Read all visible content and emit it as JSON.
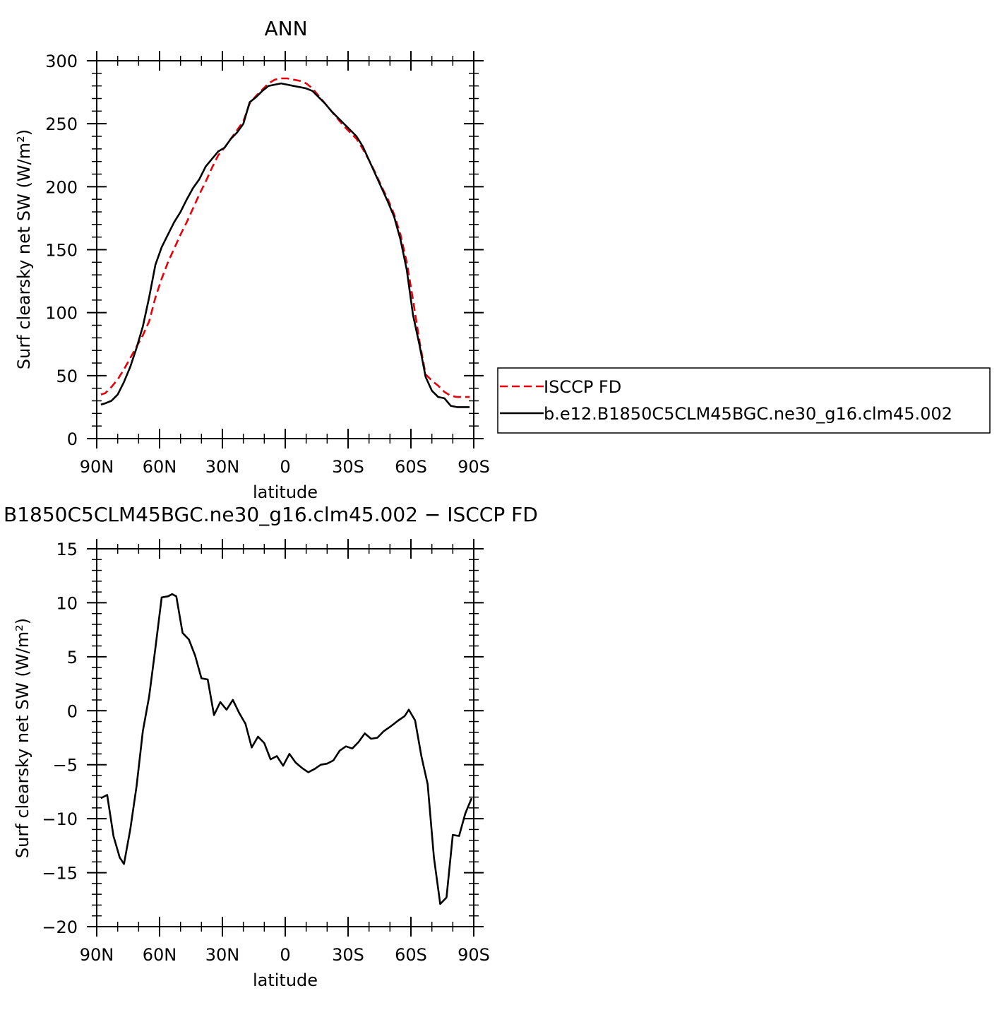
{
  "colors": {
    "series_obs": "#e8000b",
    "series_model": "#000000",
    "axis": "#000000"
  },
  "chart_data": [
    {
      "type": "line",
      "title": "ANN",
      "xlabel": "latitude",
      "ylabel": "Surf clearsky net SW (W/m²)",
      "xlim": [
        -90,
        90
      ],
      "ylim": [
        0,
        300
      ],
      "x_ticks": [
        -90,
        -60,
        -30,
        0,
        30,
        60,
        90
      ],
      "x_tick_labels": [
        "90N",
        "60N",
        "30N",
        "0",
        "30S",
        "60S",
        "90S"
      ],
      "y_ticks": [
        0,
        50,
        100,
        150,
        200,
        250,
        300
      ],
      "y_tick_labels": [
        "0",
        "50",
        "100",
        "150",
        "200",
        "250",
        "300"
      ],
      "legend_position": "right",
      "series": [
        {
          "name": "ISCCP FD",
          "style": "dashed",
          "color": "#e8000b",
          "x": [
            -88,
            -86,
            -83,
            -80,
            -77,
            -74,
            -71,
            -68,
            -65,
            -62,
            -59,
            -56,
            -53,
            -50,
            -47,
            -44,
            -41,
            -38,
            -35,
            -32,
            -29,
            -26,
            -23,
            -20,
            -17,
            -14,
            -11,
            -8,
            -5,
            -2,
            1,
            4,
            7,
            10,
            13,
            16,
            19,
            22,
            25,
            28,
            31,
            34,
            37,
            40,
            43,
            46,
            49,
            52,
            55,
            58,
            61,
            64,
            67,
            70,
            73,
            76,
            79,
            82,
            85,
            88
          ],
          "y": [
            35,
            36,
            41,
            47,
            55,
            64,
            73,
            82,
            93,
            112,
            127,
            140,
            151,
            162,
            172,
            183,
            194,
            204,
            215,
            225,
            231,
            238,
            245,
            252,
            266,
            272,
            277,
            282,
            285,
            286,
            286,
            285,
            284,
            282,
            278,
            272,
            266,
            260,
            254,
            248,
            243,
            238,
            230,
            221,
            211,
            200,
            190,
            178,
            162,
            140,
            110,
            78,
            51,
            46,
            42,
            37,
            34,
            33,
            33,
            33
          ]
        },
        {
          "name": "b.e12.B1850C5CLM45BGC.ne30_g16.clm45.002",
          "style": "solid",
          "color": "#000000",
          "x": [
            -88,
            -86,
            -83,
            -80,
            -77,
            -74,
            -71,
            -68,
            -65,
            -62,
            -59,
            -56,
            -53,
            -50,
            -47,
            -44,
            -41,
            -38,
            -35,
            -32,
            -29,
            -26,
            -23,
            -20,
            -17,
            -14,
            -11,
            -8,
            -5,
            -2,
            1,
            4,
            7,
            10,
            13,
            16,
            19,
            22,
            25,
            28,
            31,
            34,
            37,
            40,
            43,
            46,
            49,
            52,
            55,
            58,
            61,
            64,
            67,
            70,
            73,
            76,
            79,
            82,
            85,
            88
          ],
          "y": [
            27,
            28,
            30,
            35,
            45,
            57,
            72,
            89,
            112,
            138,
            152,
            162,
            172,
            180,
            190,
            199,
            206,
            216,
            222,
            228,
            231,
            238,
            243,
            250,
            267,
            271,
            276,
            280,
            281,
            282,
            281,
            280,
            279,
            278,
            276,
            271,
            266,
            260,
            255,
            250,
            245,
            240,
            232,
            221,
            210,
            199,
            188,
            176,
            158,
            134,
            98,
            75,
            49,
            38,
            33,
            32,
            26,
            25,
            25,
            25
          ]
        }
      ]
    },
    {
      "type": "line",
      "title": "B1850C5CLM45BGC.ne30_g16.clm45.002 − ISCCP FD",
      "xlabel": "latitude",
      "ylabel": "Surf clearsky net SW (W/m²)",
      "xlim": [
        -90,
        90
      ],
      "ylim": [
        -20,
        15
      ],
      "x_ticks": [
        -90,
        -60,
        -30,
        0,
        30,
        60,
        90
      ],
      "x_tick_labels": [
        "90N",
        "60N",
        "30N",
        "0",
        "30S",
        "60S",
        "90S"
      ],
      "y_ticks": [
        -20,
        -15,
        -10,
        -5,
        0,
        5,
        10,
        15
      ],
      "y_tick_labels": [
        "−20",
        "−15",
        "−10",
        "−5",
        "0",
        "5",
        "10",
        "15"
      ],
      "series": [
        {
          "style": "solid",
          "color": "#000000",
          "x": [
            -88,
            -85,
            -82,
            -79,
            -77,
            -74,
            -71,
            -68,
            -65,
            -62,
            -59,
            -56,
            -54,
            -52,
            -49,
            -46,
            -43,
            -40,
            -37,
            -34,
            -31,
            -28,
            -25,
            -22,
            -19,
            -16,
            -13,
            -10,
            -7,
            -4,
            -1,
            2,
            5,
            8,
            11,
            14,
            17,
            20,
            23,
            26,
            29,
            32,
            35,
            38,
            41,
            44,
            47,
            50,
            52,
            54,
            57,
            59,
            62,
            65,
            68,
            71,
            74,
            77,
            80,
            83,
            86,
            89
          ],
          "y": [
            -8.1,
            -7.8,
            -11.6,
            -13.6,
            -14.2,
            -11.0,
            -7.0,
            -1.9,
            1.3,
            5.8,
            10.5,
            10.6,
            10.8,
            10.6,
            7.2,
            6.6,
            5.1,
            3.0,
            2.9,
            -0.4,
            0.8,
            0.1,
            1.0,
            -0.2,
            -1.2,
            -3.4,
            -2.4,
            -3.0,
            -4.5,
            -4.2,
            -5.1,
            -4.0,
            -4.8,
            -5.3,
            -5.7,
            -5.4,
            -5.0,
            -4.9,
            -4.6,
            -3.7,
            -3.3,
            -3.5,
            -2.9,
            -2.1,
            -2.6,
            -2.5,
            -1.9,
            -1.5,
            -1.2,
            -0.9,
            -0.5,
            0.1,
            -0.9,
            -4.2,
            -6.8,
            -13.6,
            -17.9,
            -17.3,
            -11.5,
            -11.6,
            -9.5,
            -8.1
          ]
        }
      ]
    }
  ]
}
